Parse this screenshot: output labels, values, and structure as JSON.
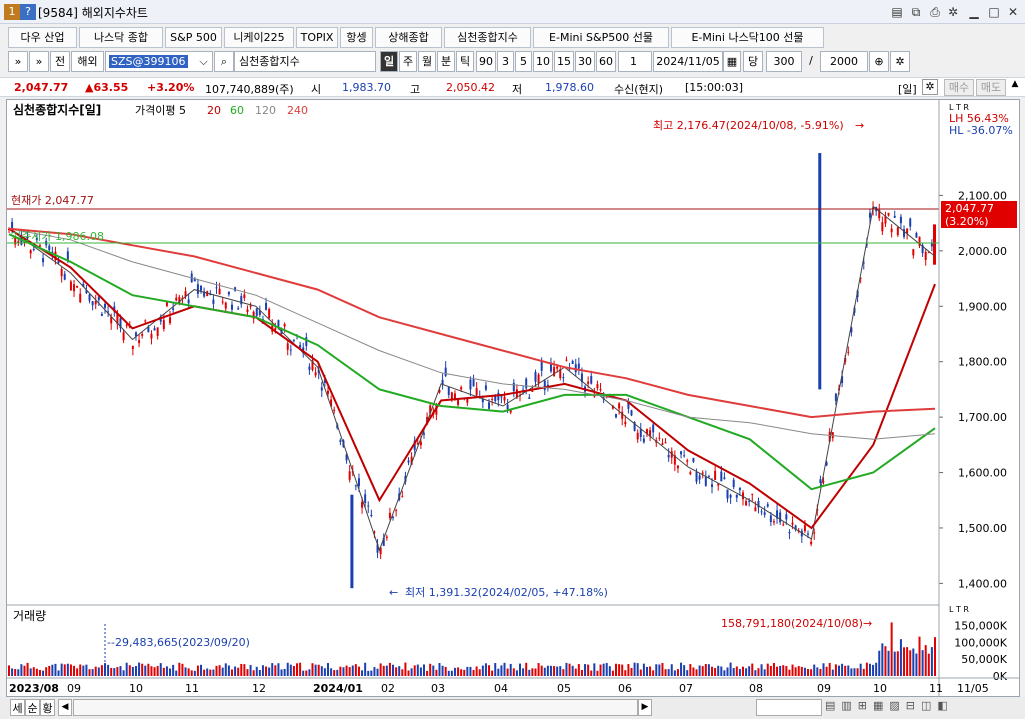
{
  "window": {
    "number": "[9584]",
    "title": "해외지수차트"
  },
  "tabs": [
    "다우 산업",
    "나스닥 종합",
    "S&P 500",
    "니케이225",
    "TOPIX",
    "항셍",
    "상해종합",
    "심천종합지수",
    "E-Mini S&P500 선물",
    "E-Mini 나스닥100 선물"
  ],
  "toolbar": {
    "expand": "»",
    "chevron": "»",
    "mode_prev": "전",
    "market": "해외",
    "symbol": "SZS@399106",
    "name": "심천종합지수",
    "periods": [
      "일",
      "주",
      "월",
      "분",
      "틱"
    ],
    "active_period": "일",
    "ticks": [
      "90",
      "3",
      "5",
      "10",
      "15",
      "30",
      "60"
    ],
    "step": "1",
    "date": "2024/11/05",
    "day_label": "당",
    "count": "300",
    "total": "2000"
  },
  "quote": {
    "price": "2,047.77",
    "change": "▲63.55",
    "pct": "+3.20%",
    "volume": "107,740,889(주)",
    "open_label": "시",
    "open": "1,983.70",
    "high_label": "고",
    "high": "2,050.42",
    "low_label": "저",
    "low": "1,978.60",
    "status": "수신(현지)",
    "time": "[15:00:03]",
    "period_label": "[일]",
    "buy": "매수",
    "sell": "매도"
  },
  "chart": {
    "title": "심천종합지수[일]",
    "ma_label": "가격이평 5",
    "ma_periods": [
      "20",
      "60",
      "120",
      "240"
    ],
    "ma_colors": {
      "ma5": "#444444",
      "ma20": "#c00000",
      "ma60": "#22aa22",
      "ma120": "#888888",
      "ma240": "#e03c3c"
    },
    "current_label": "현재가 2,047.77",
    "prev_close_label": "기준시가 1,986.08",
    "high_note": "최고 2,176.47(2024/10/08, -5.91%)",
    "low_note": "최저 1,391.32(2024/02/05, +47.18%)",
    "lh": "LH  56.43%",
    "hl": "HL  -36.07%",
    "price_tag": "2,047.77",
    "price_tag_pct": "(3.20%)",
    "ltr": "L T R",
    "yticks": [
      "2,100.00",
      "2,000.00",
      "1,900.00",
      "1,800.00",
      "1,700.00",
      "1,600.00",
      "1,500.00",
      "1,400.00"
    ],
    "volume_title": "거래량",
    "volume_note1": "29,483,665(2023/09/20)",
    "volume_note2": "158,791,180(2024/10/08)",
    "vol_ticks": [
      "150,000K",
      "100,000K",
      "50,000K",
      "0K"
    ],
    "xlabels": [
      "2023/08",
      "09",
      "10",
      "11",
      "12",
      "2024/01",
      "02",
      "03",
      "04",
      "05",
      "06",
      "07",
      "08",
      "09",
      "10",
      "11",
      "11/05"
    ]
  },
  "chart_data": {
    "type": "line",
    "title": "심천종합지수[일]",
    "x": [
      "2023/08",
      "2023/09",
      "2023/10",
      "2023/11",
      "2023/12",
      "2024/01",
      "2024/02",
      "2024/03",
      "2024/04",
      "2024/05",
      "2024/06",
      "2024/07",
      "2024/08",
      "2024/09",
      "2024/10",
      "2024/11"
    ],
    "series": [
      {
        "name": "5",
        "values": [
          2040,
          1960,
          1840,
          1930,
          1900,
          1790,
          1460,
          1760,
          1720,
          1790,
          1700,
          1610,
          1550,
          1480,
          2080,
          1990
        ]
      },
      {
        "name": "20",
        "values": [
          2040,
          1970,
          1860,
          1900,
          1880,
          1800,
          1550,
          1730,
          1740,
          1760,
          1730,
          1640,
          1580,
          1500,
          1650,
          1940
        ]
      },
      {
        "name": "60",
        "values": [
          2030,
          1980,
          1920,
          1900,
          1880,
          1830,
          1750,
          1720,
          1710,
          1740,
          1740,
          1700,
          1660,
          1570,
          1600,
          1680
        ]
      },
      {
        "name": "120",
        "values": [
          2040,
          2020,
          1980,
          1950,
          1920,
          1870,
          1820,
          1780,
          1760,
          1750,
          1730,
          1700,
          1690,
          1670,
          1660,
          1670
        ]
      },
      {
        "name": "240",
        "values": [
          2040,
          2030,
          2010,
          1990,
          1960,
          1930,
          1880,
          1850,
          1820,
          1790,
          1770,
          1740,
          1720,
          1700,
          1710,
          1715
        ]
      }
    ],
    "high": {
      "value": 2176.47,
      "date": "2024/10/08"
    },
    "low": {
      "value": 1391.32,
      "date": "2024/02/05"
    },
    "current": 2047.77,
    "ylim": [
      1370,
      2200
    ],
    "volume": {
      "peak": 158791180,
      "peak_date": "2024/10/08",
      "mark": 29483665,
      "mark_date": "2023/09/20"
    }
  },
  "bottom": {
    "b1": "세",
    "b2": "순",
    "b3": "황"
  }
}
